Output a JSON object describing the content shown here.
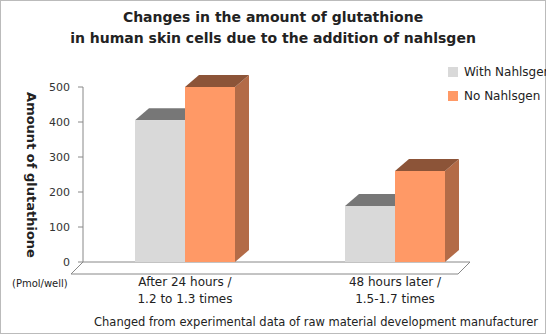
{
  "chart_data": {
    "type": "bar",
    "title": "Changes in the amount of glutathione\nin human skin cells due to the addition of nahlsgen",
    "y_label": "Amount of glutathione",
    "annotations": [
      "(Pmol/well)",
      "Changed from experimental data of raw material development manufacturer"
    ],
    "categories": [
      "After 24 hours /\n1.2 to 1.3 times",
      "48 hours later /\n1.5-1.7 times"
    ],
    "series": [
      {
        "name": "With Nahlsgen",
        "color": "#d9d9d9",
        "values": [
          405,
          160
        ]
      },
      {
        "name": "No Nahlsgen",
        "color": "#ff9966",
        "values": [
          500,
          260
        ]
      }
    ],
    "ylim": [
      0,
      500
    ],
    "yticks": [
      0,
      100,
      200,
      300,
      400,
      500
    ],
    "legend": "upper right",
    "grid": false
  }
}
